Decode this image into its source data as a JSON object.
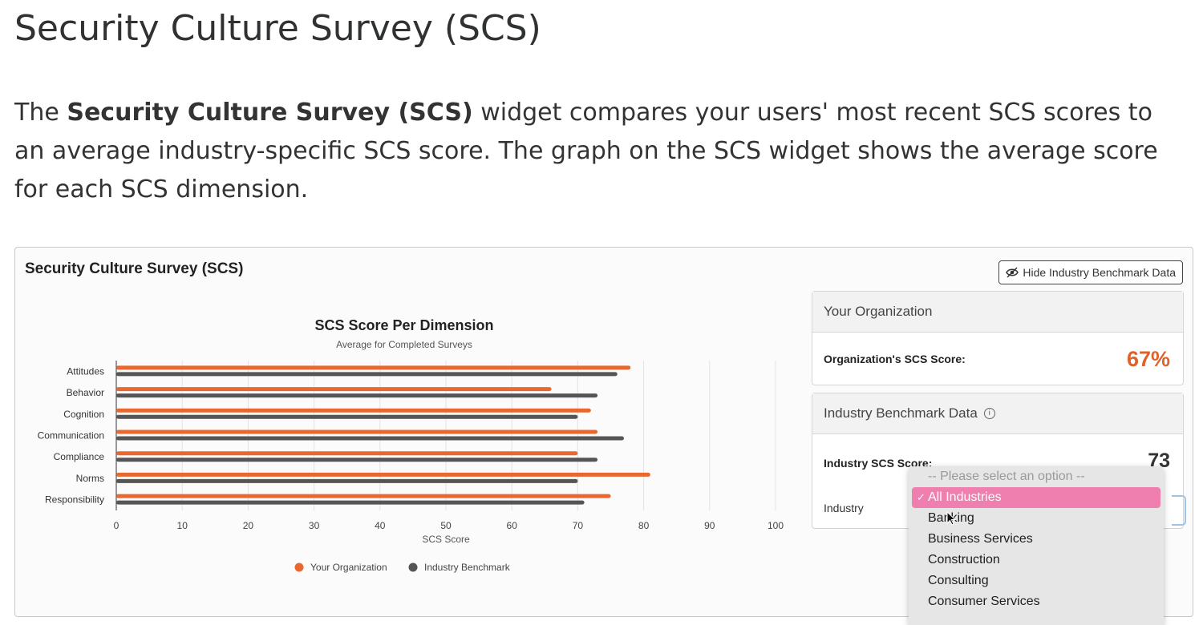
{
  "page": {
    "title": "Security Culture Survey (SCS)",
    "intro_prefix": "The ",
    "intro_bold": "Security Culture Survey (SCS)",
    "intro_rest": " widget compares your users' most recent SCS scores to an average industry-specific SCS score. The graph on the SCS widget shows the average score for each SCS dimension."
  },
  "widget": {
    "title": "Security Culture Survey (SCS)",
    "hide_button_label": "Hide Industry Benchmark Data",
    "hide_button_icon": "eye-slash-icon"
  },
  "colors": {
    "organization": "#e8682f",
    "industry": "#555555",
    "selected_option": "#ee7fae"
  },
  "org_panel": {
    "header": "Your Organization",
    "score_label": "Organization's SCS Score:",
    "score_value": "67%"
  },
  "industry_panel": {
    "header": "Industry Benchmark Data",
    "info_icon": "info-icon",
    "score_label": "Industry SCS Score:",
    "score_value": "73",
    "industry_label": "Industry"
  },
  "industry_dropdown": {
    "placeholder": "-- Please select an option --",
    "selected": "All Industries",
    "check_mark": "✓",
    "options": [
      "Banking",
      "Business Services",
      "Construction",
      "Consulting",
      "Consumer Services"
    ]
  },
  "chart_data": {
    "type": "bar",
    "orientation": "horizontal",
    "title": "SCS Score Per Dimension",
    "subtitle": "Average for Completed Surveys",
    "xlabel": "SCS Score",
    "ylabel": "",
    "xlim": [
      0,
      100
    ],
    "xticks": [
      0,
      10,
      20,
      30,
      40,
      50,
      60,
      70,
      80,
      90,
      100
    ],
    "categories": [
      "Attitudes",
      "Behavior",
      "Cognition",
      "Communication",
      "Compliance",
      "Norms",
      "Responsibility"
    ],
    "series": [
      {
        "name": "Your Organization",
        "values": [
          78,
          66,
          72,
          73,
          70,
          81,
          75
        ]
      },
      {
        "name": "Industry Benchmark",
        "values": [
          76,
          73,
          70,
          77,
          73,
          70,
          71
        ]
      }
    ],
    "legend_position": "bottom",
    "grid": true
  }
}
